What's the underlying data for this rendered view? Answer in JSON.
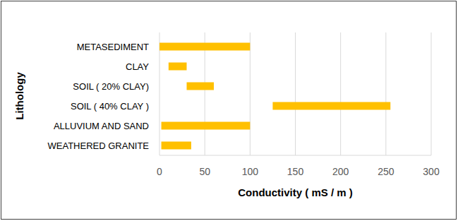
{
  "chart_data": {
    "type": "range_bar",
    "orientation": "horizontal",
    "x_label": "Conductivity ( mS / m )",
    "y_label": "Lithology",
    "categories": [
      "METASEDIMENT",
      "CLAY",
      "SOIL ( 20% CLAY)",
      "SOIL ( 40% CLAY )",
      "ALLUVIUM AND SAND",
      "WEATHERED GRANITE"
    ],
    "low": [
      0,
      10,
      30,
      125,
      2,
      2
    ],
    "high": [
      100,
      30,
      60,
      255,
      100,
      35
    ],
    "color": "#ffc000",
    "xlim": [
      0,
      300
    ],
    "xticks": [
      0,
      50,
      100,
      150,
      200,
      250,
      300
    ],
    "grid": true
  }
}
